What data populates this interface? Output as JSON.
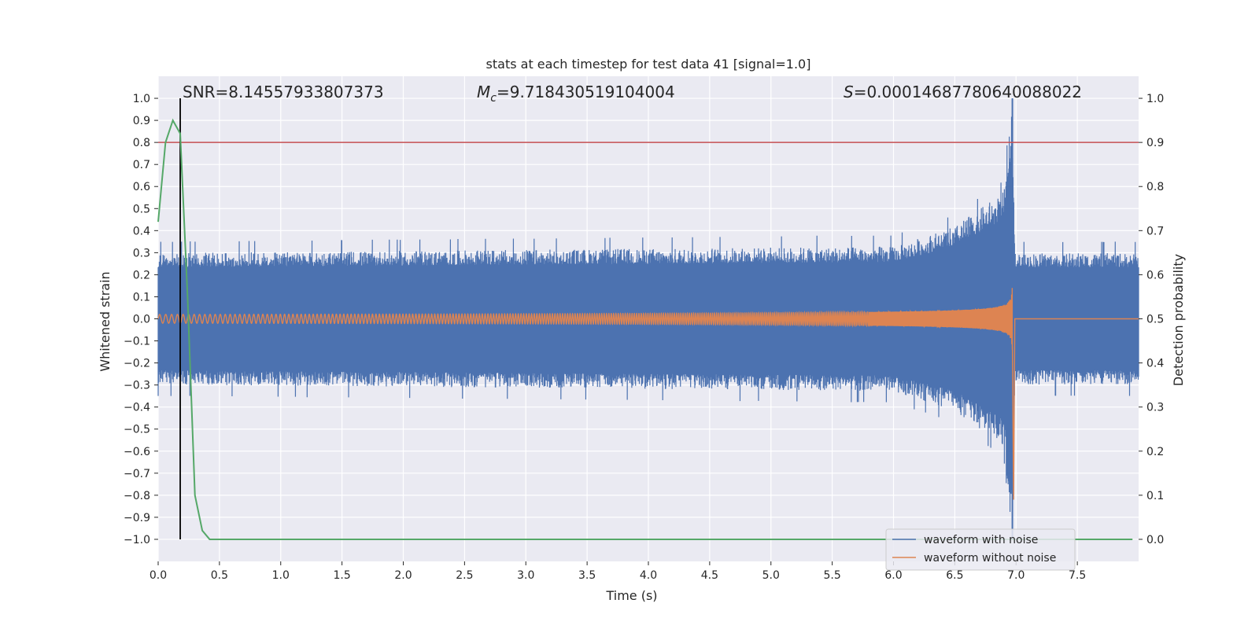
{
  "chart_data": {
    "type": "line",
    "title": "stats at each timestep for test data 41 [signal=1.0]",
    "xlabel": "Time (s)",
    "ylabel_left": "Whitened strain",
    "ylabel_right": "Detection probability",
    "xlim": [
      0.0,
      8.0
    ],
    "ylim_left": [
      -1.1,
      1.1
    ],
    "ylim_right": [
      -0.05,
      1.05
    ],
    "x_ticks": [
      0.0,
      0.5,
      1.0,
      1.5,
      2.0,
      2.5,
      3.0,
      3.5,
      4.0,
      4.5,
      5.0,
      5.5,
      6.0,
      6.5,
      7.0,
      7.5
    ],
    "x_tick_labels": [
      "0.0",
      "0.5",
      "1.0",
      "1.5",
      "2.0",
      "2.5",
      "3.0",
      "3.5",
      "4.0",
      "4.5",
      "5.0",
      "5.5",
      "6.0",
      "6.5",
      "7.0",
      "7.5"
    ],
    "y_left_ticks": [
      1.0,
      0.9,
      0.8,
      0.7,
      0.6,
      0.5,
      0.4,
      0.3,
      0.2,
      0.1,
      0.0,
      -0.1,
      -0.2,
      -0.3,
      -0.4,
      -0.5,
      -0.6,
      -0.7,
      -0.8,
      -0.9,
      -1.0
    ],
    "y_left_tick_labels": [
      "1.0",
      "0.9",
      "0.8",
      "0.7",
      "0.6",
      "0.5",
      "0.4",
      "0.3",
      "0.2",
      "0.1",
      "0.0",
      "−0.1",
      "−0.2",
      "−0.3",
      "−0.4",
      "−0.5",
      "−0.6",
      "−0.7",
      "−0.8",
      "−0.9",
      "−1.0"
    ],
    "y_right_ticks": [
      1.0,
      0.9,
      0.8,
      0.7,
      0.6,
      0.5,
      0.4,
      0.3,
      0.2,
      0.1,
      0.0
    ],
    "y_right_tick_labels": [
      "1.0",
      "0.9",
      "0.8",
      "0.7",
      "0.6",
      "0.5",
      "0.4",
      "0.3",
      "0.2",
      "0.1",
      "0.0"
    ],
    "annotations": {
      "snr": "SNR=8.14557933807373",
      "mc_symbol": "M",
      "mc_subscript": "c",
      "mc_value": "=9.718430519104004",
      "s_symbol": "S",
      "s_value": "=0.00014687780640088022"
    },
    "series": [
      {
        "name": "waveform with noise",
        "color": "#4c72b0",
        "axis": "left",
        "noise_band": [
          {
            "t": 0.0,
            "env": 0.3
          },
          {
            "t": 6.0,
            "env": 0.33
          },
          {
            "t": 6.5,
            "env": 0.42
          },
          {
            "t": 6.9,
            "env": 0.58
          },
          {
            "t": 6.97,
            "env": 1.0
          },
          {
            "t": 6.99,
            "env": 0.3
          },
          {
            "t": 8.0,
            "env": 0.3
          }
        ]
      },
      {
        "name": "waveform without noise",
        "color": "#dd8452",
        "axis": "left",
        "chirp": {
          "t_merge": 6.97,
          "amp_start": 0.02,
          "amp_peak": 0.82,
          "cycles_start": 12
        }
      },
      {
        "name": "detection probability",
        "color": "#55a868",
        "axis": "right",
        "x": [
          0.0,
          0.06,
          0.12,
          0.18,
          0.24,
          0.3,
          0.36,
          0.42,
          8.0
        ],
        "y": [
          0.72,
          0.9,
          0.95,
          0.92,
          0.55,
          0.1,
          0.02,
          0.0,
          0.0
        ],
        "x_end": 7.95
      }
    ],
    "reference_lines": {
      "threshold": {
        "axis": "right",
        "value": 0.9,
        "color": "#c44e52"
      },
      "vertical": {
        "x": 0.18,
        "color": "#000000"
      }
    },
    "legend": {
      "position": "lower-right",
      "entries": [
        "waveform with noise",
        "waveform without noise"
      ]
    },
    "grid": true,
    "colors": {
      "plot_bg": "#eaeaf2",
      "grid": "#ffffff",
      "text": "#262626"
    }
  }
}
